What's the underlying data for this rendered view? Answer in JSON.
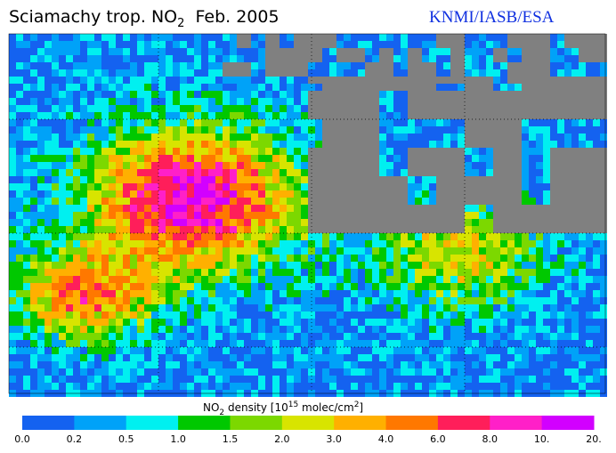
{
  "header": {
    "title_main": "Sciamachy trop. NO",
    "title_sub": "2",
    "title_rest": "  Feb. 2005",
    "credit": "KNMI/IASB/ESA"
  },
  "colorbar": {
    "label_a": "NO",
    "label_a_sub": "2",
    "label_b": " density [10",
    "label_b_sup": "15",
    "label_c": " molec/cm",
    "label_c_sup": "2",
    "label_d": "]",
    "ticks": [
      "0.0",
      "0.2",
      "0.5",
      "1.0",
      "1.5",
      "2.0",
      "3.0",
      "4.0",
      "6.0",
      "8.0",
      "10.",
      "20."
    ],
    "colors": [
      "#1462f0",
      "#00a2f8",
      "#00f0f0",
      "#00c800",
      "#7cd800",
      "#d8e400",
      "#ffb000",
      "#ff7800",
      "#ff1e5a",
      "#ff20c8",
      "#d200ff"
    ]
  }
}
